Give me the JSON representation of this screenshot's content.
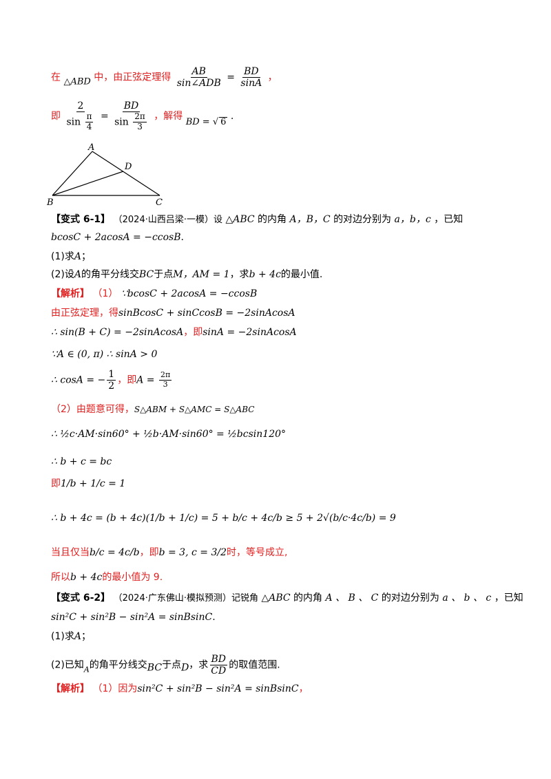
{
  "lines": {
    "l1_prefix": "在",
    "l1_tri": "△ABD",
    "l1_mid": "中，由正弦定理得",
    "l1_f1_num": "AB",
    "l1_f1_den": "sin∠ADB",
    "l1_f2_num": "BD",
    "l1_f2_den": "sinA",
    "l1_end": "，",
    "l2_prefix": "即",
    "l2_f1_num": "2",
    "l2_f1_den_a": "sin",
    "l2_f1_den_pi": "π",
    "l2_f1_den_4": "4",
    "l2_f2_num": "BD",
    "l2_f2_den_a": "sin",
    "l2_f2_den_pi": "2π",
    "l2_f2_den_3": "3",
    "l2_mid": "，解得",
    "l2_res": "BD = ",
    "l2_sqrt": "6",
    "l2_end": "."
  },
  "figure": {
    "A": "A",
    "B": "B",
    "C": "C",
    "D": "D"
  },
  "v61": {
    "tag": "【变式 6-1】",
    "src": "（2024·山西吕梁·一模）设",
    "tri": "△ABC",
    "t1": "的内角",
    "abc": "A，B，C",
    "t2": "的对边分别为",
    "sides": "a，b，c",
    "t3": "，已知",
    "cond": "bcosC + 2acosA = −ccosB",
    "cond_end": ".",
    "q1": "(1)求",
    "q1v": "A",
    "q1e": "；",
    "q2a": "(2)设",
    "q2v": "A",
    "q2b": "的角平分线交",
    "q2bc": "BC",
    "q2c": "于点",
    "q2m": "M，AM = 1",
    "q2d": "，求",
    "q2expr": "b + 4c",
    "q2e": "的最小值."
  },
  "sol61": {
    "tag": "【解析】",
    "p1": "（1）",
    "s1": "∵bcosC + 2acosA = −ccosB",
    "s2a": "由正弦定理，得",
    "s2b": "sinBcosC + sinCcosB = −2sinAcosA",
    "s3a": "∴ sin(B + C) = −2sinAcosA",
    "s3b": "，即",
    "s3c": "sinA = −2sinAcosA",
    "s4": "∵A ∈ (0, π) ∴ sinA > 0",
    "s5a": "∴ cosA = −",
    "s5num": "1",
    "s5den": "2",
    "s5b": "，即",
    "s5c": "A = ",
    "s5cnum": "2π",
    "s5cden": "3",
    "p2": "（2）由题意可得，",
    "s6": "S△ABM + S△AMC = S△ABC",
    "s7": "∴ ½c·AM·sin60° + ½b·AM·sin60° = ½bcsin120°",
    "s8": "∴ b + c = bc",
    "s9a": "即",
    "s9b": "1/b + 1/c = 1",
    "s10": "∴ b + 4c = (b + 4c)(1/b + 1/c) = 5 + b/c + 4c/b ≥ 5 + 2√(b/c·4c/b) = 9",
    "s11a": "当且仅当",
    "s11b": "b/c = 4c/b",
    "s11c": "，即",
    "s11d": "b = 3, c = 3/2",
    "s11e": "时，等号成立,",
    "s12a": "所以",
    "s12b": "b + 4c",
    "s12c": "的最小值为 9."
  },
  "v62": {
    "tag": "【变式 6-2】",
    "src": "（2024·广东佛山·模拟预测）记锐角",
    "tri": "△ABC",
    "t1": "的内角",
    "abc": "A 、 B 、 C",
    "t2": "的对边分别为",
    "sides": "a 、 b 、 c",
    "t3": "，已知",
    "cond": "sin²C + sin²B − sin²A = sinBsinC",
    "cond_end": ".",
    "q1": "(1)求",
    "q1v": "A",
    "q1e": "；",
    "q2a": "(2)已知",
    "q2v": "A",
    "q2b": "的角平分线交",
    "q2bc": "BC",
    "q2c": "于点",
    "q2d": "D",
    "q2e": "，求",
    "q2fn": "BD",
    "q2fd": "CD",
    "q2f": "的取值范围."
  },
  "sol62": {
    "tag": "【解析】",
    "p1": "（1）因为",
    "s1": "sin²C + sin²B − sin²A = sinBsinC",
    "s1e": "，"
  }
}
